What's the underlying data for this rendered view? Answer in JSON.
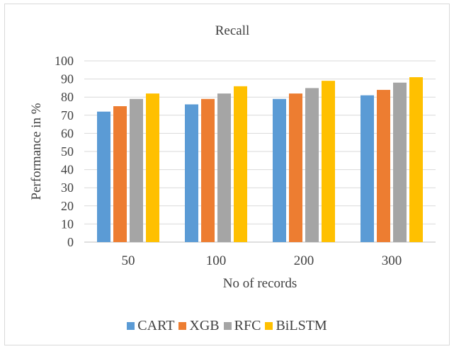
{
  "chart_data": {
    "type": "bar",
    "title": "Recall",
    "xlabel": "No of records",
    "ylabel": "Performance in %",
    "categories": [
      "50",
      "100",
      "200",
      "300"
    ],
    "ylim": [
      0,
      100
    ],
    "yticks": [
      0,
      10,
      20,
      30,
      40,
      50,
      60,
      70,
      80,
      90,
      100
    ],
    "grid": true,
    "legend_position": "bottom",
    "series": [
      {
        "name": "CART",
        "color": "#5b9bd5",
        "values": [
          72,
          76,
          79,
          81
        ]
      },
      {
        "name": "XGB",
        "color": "#ed7d31",
        "values": [
          75,
          79,
          82,
          84
        ]
      },
      {
        "name": "RFC",
        "color": "#a5a5a5",
        "values": [
          79,
          82,
          85,
          88
        ]
      },
      {
        "name": "BiLSTM",
        "color": "#ffc000",
        "values": [
          82,
          86,
          89,
          91
        ]
      }
    ]
  }
}
